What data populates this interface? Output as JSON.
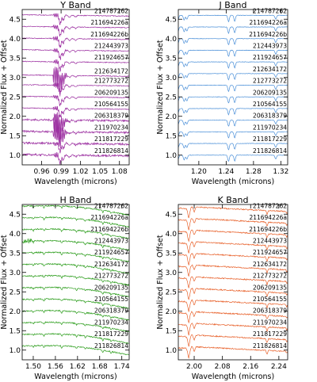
{
  "ylabel": "Normalized Flux + Offset",
  "xlabel": "Wavelength (microns)",
  "objects": [
    "214787262",
    "211694226a",
    "211694226b",
    "212443973",
    "211924657",
    "212634172",
    "212773272",
    "206209135",
    "210564155",
    "206318379",
    "211970234",
    "211817229",
    "211826814"
  ],
  "chart_data": [
    {
      "type": "line",
      "title": "Y Band",
      "xlabel": "Wavelength (microns)",
      "ylabel": "Normalized Flux + Offset",
      "xlim": [
        0.93,
        1.095
      ],
      "ylim": [
        0.75,
        4.75
      ],
      "xticks": [
        "0.96",
        "0.99",
        "1.02",
        "1.05",
        "1.08"
      ],
      "xtick_values": [
        0.96,
        0.99,
        1.02,
        1.05,
        1.08
      ],
      "yticks": [
        "1.0",
        "1.5",
        "2.0",
        "2.5",
        "3.0",
        "3.5",
        "4.0",
        "4.5"
      ],
      "ytick_values": [
        1.0,
        1.5,
        2.0,
        2.5,
        3.0,
        3.5,
        4.0,
        4.5
      ],
      "color": "#9b2ea0",
      "series": [
        {
          "name": "214787262",
          "offset": 4.6
        },
        {
          "name": "211694226a",
          "offset": 4.3
        },
        {
          "name": "211694226b",
          "offset": 4.0
        },
        {
          "name": "212443973",
          "offset": 3.7
        },
        {
          "name": "211924657",
          "offset": 3.4
        },
        {
          "name": "212634172",
          "offset": 3.05
        },
        {
          "name": "212773272",
          "offset": 2.8
        },
        {
          "name": "206209135",
          "offset": 2.5
        },
        {
          "name": "210564155",
          "offset": 2.2
        },
        {
          "name": "206318379",
          "offset": 1.9
        },
        {
          "name": "211970234",
          "offset": 1.6
        },
        {
          "name": "211817229",
          "offset": 1.3
        },
        {
          "name": "211826814",
          "offset": 1.0
        }
      ]
    },
    {
      "type": "line",
      "title": "J Band",
      "xlabel": "Wavelength (microns)",
      "ylabel": "Normalized Flux + Offset",
      "xlim": [
        1.17,
        1.33
      ],
      "ylim": [
        0.75,
        4.75
      ],
      "xticks": [
        "1.20",
        "1.24",
        "1.28",
        "1.32"
      ],
      "xtick_values": [
        1.2,
        1.24,
        1.28,
        1.32
      ],
      "yticks": [
        "1.0",
        "1.5",
        "2.0",
        "2.5",
        "3.0",
        "3.5",
        "4.0",
        "4.5"
      ],
      "ytick_values": [
        1.0,
        1.5,
        2.0,
        2.5,
        3.0,
        3.5,
        4.0,
        4.5
      ],
      "color": "#4a8fd8",
      "series": [
        {
          "name": "214787262",
          "offset": 4.6
        },
        {
          "name": "211694226a",
          "offset": 4.3
        },
        {
          "name": "211694226b",
          "offset": 4.0
        },
        {
          "name": "212443973",
          "offset": 3.7
        },
        {
          "name": "211924657",
          "offset": 3.4
        },
        {
          "name": "212634172",
          "offset": 3.1
        },
        {
          "name": "212773272",
          "offset": 2.8
        },
        {
          "name": "206209135",
          "offset": 2.5
        },
        {
          "name": "210564155",
          "offset": 2.2
        },
        {
          "name": "206318379",
          "offset": 1.9
        },
        {
          "name": "211970234",
          "offset": 1.6
        },
        {
          "name": "211817229",
          "offset": 1.3
        },
        {
          "name": "211826814",
          "offset": 1.0
        }
      ]
    },
    {
      "type": "line",
      "title": "H Band",
      "xlabel": "Wavelength (microns)",
      "ylabel": "Normalized Flux + Offset",
      "xlim": [
        1.47,
        1.76
      ],
      "ylim": [
        0.75,
        4.75
      ],
      "xticks": [
        "1.50",
        "1.56",
        "1.62",
        "1.68",
        "1.74"
      ],
      "xtick_values": [
        1.5,
        1.56,
        1.62,
        1.68,
        1.74
      ],
      "yticks": [
        "1.0",
        "1.5",
        "2.0",
        "2.5",
        "3.0",
        "3.5",
        "4.0",
        "4.5"
      ],
      "ytick_values": [
        1.0,
        1.5,
        2.0,
        2.5,
        3.0,
        3.5,
        4.0,
        4.5
      ],
      "color": "#2e9e1e",
      "series": [
        {
          "name": "214787262",
          "offset": 4.6
        },
        {
          "name": "211694226a",
          "offset": 4.3
        },
        {
          "name": "211694226b",
          "offset": 4.0
        },
        {
          "name": "212443973",
          "offset": 3.7
        },
        {
          "name": "211924657",
          "offset": 3.4
        },
        {
          "name": "212634172",
          "offset": 3.1
        },
        {
          "name": "212773272",
          "offset": 2.8
        },
        {
          "name": "206209135",
          "offset": 2.5
        },
        {
          "name": "210564155",
          "offset": 2.2
        },
        {
          "name": "206318379",
          "offset": 1.9
        },
        {
          "name": "211970234",
          "offset": 1.6
        },
        {
          "name": "211817229",
          "offset": 1.3
        },
        {
          "name": "211826814",
          "offset": 1.0
        }
      ]
    },
    {
      "type": "line",
      "title": "K Band",
      "xlabel": "Wavelength (microns)",
      "ylabel": "Normalized Flux + Offset",
      "xlim": [
        1.955,
        2.265
      ],
      "ylim": [
        0.75,
        4.75
      ],
      "xticks": [
        "2.00",
        "2.08",
        "2.16",
        "2.24"
      ],
      "xtick_values": [
        2.0,
        2.08,
        2.16,
        2.24
      ],
      "yticks": [
        "1.0",
        "1.5",
        "2.0",
        "2.5",
        "3.0",
        "3.5",
        "4.0",
        "4.5"
      ],
      "ytick_values": [
        1.0,
        1.5,
        2.0,
        2.5,
        3.0,
        3.5,
        4.0,
        4.5
      ],
      "color": "#e8622c",
      "series": [
        {
          "name": "214787262",
          "offset": 4.6
        },
        {
          "name": "211694226a",
          "offset": 4.3
        },
        {
          "name": "211694226b",
          "offset": 4.0
        },
        {
          "name": "212443973",
          "offset": 3.7
        },
        {
          "name": "211924657",
          "offset": 3.4
        },
        {
          "name": "212634172",
          "offset": 3.1
        },
        {
          "name": "212773272",
          "offset": 2.8
        },
        {
          "name": "206209135",
          "offset": 2.5
        },
        {
          "name": "210564155",
          "offset": 2.2
        },
        {
          "name": "206318379",
          "offset": 1.9
        },
        {
          "name": "211970234",
          "offset": 1.6
        },
        {
          "name": "211817229",
          "offset": 1.3
        },
        {
          "name": "211826814",
          "offset": 1.0
        }
      ]
    }
  ]
}
